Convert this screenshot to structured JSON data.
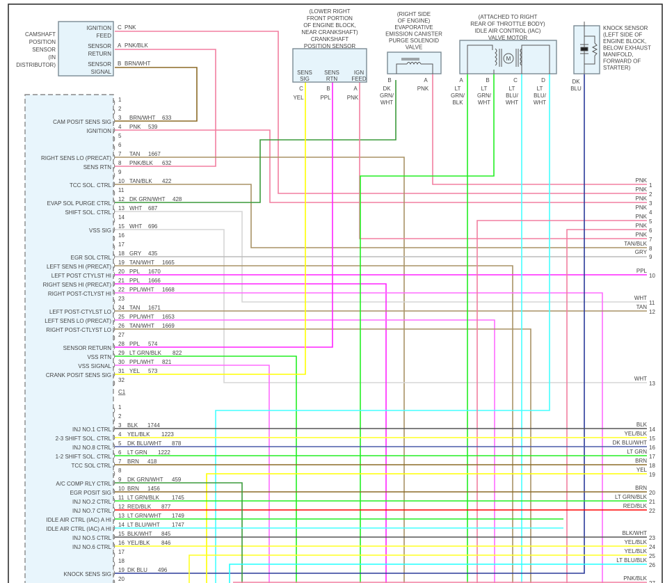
{
  "wire_colors": {
    "PNK": "#f27ea0",
    "PNK/BLK": "#f27ea0",
    "PPL": "#ff22ff",
    "PPL/WHT": "#ff6cff",
    "TAN": "#a89265",
    "TAN/BLK": "#a89265",
    "TAN/WHT": "#a89265",
    "BRN": "#8b6a26",
    "BRN/WHT": "#8b6a26",
    "GRY": "#bcbcbc",
    "WHT": "#d6d6d6",
    "YEL": "#ffff00",
    "YEL/BLK": "#ffff22",
    "LT GRN": "#22ee22",
    "LT GRN/BLK": "#22ee22",
    "LT GRN/WHT": "#22ee22",
    "DK GRN/WHT": "#3a9a3a",
    "LT BLU/WHT": "#44ffff",
    "LT BLU/BLK": "#22ffff",
    "DK BLU": "#2a3a9a",
    "DK BLU/WHT": "#4a5aa8",
    "BLK": "#555555",
    "BLK/WHT": "#555555",
    "RED/BLK": "#ff0000"
  },
  "camshaft_sensor": {
    "name_lines": [
      "CAMSHAFT",
      "POSITION",
      "SENSOR",
      "(IN",
      "DISTRIBUTOR)"
    ],
    "pins": [
      {
        "label_lines": [
          "IGNITION",
          "FEED"
        ],
        "pin": "C",
        "wire": "PNK"
      },
      {
        "label_lines": [
          "SENSOR",
          "RETURN"
        ],
        "pin": "A",
        "wire": "PNK/BLK"
      },
      {
        "label_lines": [
          "SENSOR",
          "SIGNAL"
        ],
        "pin": "B",
        "wire": "BRN/WHT"
      }
    ]
  },
  "crank_sensor": {
    "name_lines": [
      "(LOWER RIGHT",
      "FRONT PORTION",
      "OF ENGINE BLOCK,",
      "NEAR CRANKSHAFT)",
      "CRANKSHAFT",
      "POSITION SENSOR"
    ],
    "pins": [
      {
        "label_lines": [
          "SENS",
          "SIG"
        ],
        "pin": "C",
        "wire": "YEL"
      },
      {
        "label_lines": [
          "SENS",
          "RTN"
        ],
        "pin": "B",
        "wire": "PPL"
      },
      {
        "label_lines": [
          "IGN",
          "FEED"
        ],
        "pin": "A",
        "wire": "PNK"
      }
    ]
  },
  "evap_valve": {
    "name_lines": [
      "(RIGHT SIDE",
      "OF ENGINE)",
      "EVAPORATIVE",
      "EMISSION CANISTER",
      "PURGE SOLENOID",
      "VALVE"
    ],
    "pins": [
      {
        "pin": "B",
        "wire_lines": [
          "DK",
          "GRN/",
          "WHT"
        ]
      },
      {
        "pin": "A",
        "wire_lines": [
          "PNK"
        ]
      }
    ]
  },
  "iac_motor": {
    "name_lines": [
      "(ATTACHED TO RIGHT",
      "REAR OF THROTTLE BODY)",
      "IDLE AIR CONTROL (IAC)",
      "VALVE MOTOR"
    ],
    "motor_symbol": "M",
    "pins": [
      {
        "pin": "A",
        "wire_lines": [
          "LT",
          "GRN/",
          "BLK"
        ]
      },
      {
        "pin": "B",
        "wire_lines": [
          "LT",
          "GRN/",
          "WHT"
        ]
      },
      {
        "pin": "C",
        "wire_lines": [
          "LT",
          "BLU/",
          "WHT"
        ]
      },
      {
        "pin": "D",
        "wire_lines": [
          "LT",
          "BLU/",
          "WHT"
        ]
      }
    ]
  },
  "knock_sensor": {
    "name_lines": [
      "KNOCK SENSOR",
      "(LEFT SIDE OF",
      "ENGINE BLOCK,",
      "BELOW EXHAUST",
      "MANIFOLD,",
      "FORWARD OF",
      "STARTER)"
    ],
    "wire_lines": [
      "DK",
      "BLU"
    ]
  },
  "pcm": {
    "c2_pins": [
      {
        "pin": "1",
        "func": "",
        "wire": "",
        "circuit": ""
      },
      {
        "pin": "2",
        "func": "",
        "wire": "",
        "circuit": ""
      },
      {
        "pin": "3",
        "func": "CAM POSIT SENS SIG",
        "wire": "BRN/WHT",
        "circuit": "633"
      },
      {
        "pin": "4",
        "func": "IGNITION",
        "wire": "PNK",
        "circuit": "539"
      },
      {
        "pin": "5",
        "func": "",
        "wire": "",
        "circuit": ""
      },
      {
        "pin": "6",
        "func": "",
        "wire": "",
        "circuit": ""
      },
      {
        "pin": "7",
        "func": "RIGHT SENS LO (PRECAT)",
        "wire": "TAN",
        "circuit": "1667"
      },
      {
        "pin": "8",
        "func": "SENS RTN",
        "wire": "PNK/BLK",
        "circuit": "632"
      },
      {
        "pin": "9",
        "func": "",
        "wire": "",
        "circuit": ""
      },
      {
        "pin": "10",
        "func": "TCC SOL. CTRL",
        "wire": "TAN/BLK",
        "circuit": "422"
      },
      {
        "pin": "11",
        "func": "",
        "wire": "",
        "circuit": ""
      },
      {
        "pin": "12",
        "func": "EVAP SOL PURGE CTRL",
        "wire": "DK GRN/WHT",
        "circuit": "428"
      },
      {
        "pin": "13",
        "func": "SHIFT SOL. CTRL",
        "wire": "WHT",
        "circuit": "687"
      },
      {
        "pin": "14",
        "func": "",
        "wire": "",
        "circuit": ""
      },
      {
        "pin": "15",
        "func": "VSS SIG",
        "wire": "WHT",
        "circuit": "696"
      },
      {
        "pin": "16",
        "func": "",
        "wire": "",
        "circuit": ""
      },
      {
        "pin": "17",
        "func": "",
        "wire": "",
        "circuit": ""
      },
      {
        "pin": "18",
        "func": "EGR SOL CTRL",
        "wire": "GRY",
        "circuit": "435"
      },
      {
        "pin": "19",
        "func": "LEFT SENS HI (PRECAT)",
        "wire": "TAN/WHT",
        "circuit": "1665"
      },
      {
        "pin": "20",
        "func": "LEFT POST CTYLST HI",
        "wire": "PPL",
        "circuit": "1670"
      },
      {
        "pin": "21",
        "func": "RIGHT SENS HI (PRECAT)",
        "wire": "PPL",
        "circuit": "1666"
      },
      {
        "pin": "22",
        "func": "RIGHT POST-CTLYST HI",
        "wire": "PPL/WHT",
        "circuit": "1668"
      },
      {
        "pin": "23",
        "func": "",
        "wire": "",
        "circuit": ""
      },
      {
        "pin": "24",
        "func": "LEFT POST-CTYLST LO",
        "wire": "TAN",
        "circuit": "1671"
      },
      {
        "pin": "25",
        "func": "LEFT SENS LO (PRECAT)",
        "wire": "PPL/WHT",
        "circuit": "1653"
      },
      {
        "pin": "26",
        "func": "RIGHT POST-CTLYST LO",
        "wire": "TAN/WHT",
        "circuit": "1669"
      },
      {
        "pin": "27",
        "func": "",
        "wire": "",
        "circuit": ""
      },
      {
        "pin": "28",
        "func": "SENSOR RETURN",
        "wire": "PPL",
        "circuit": "574"
      },
      {
        "pin": "29",
        "func": "VSS RTN",
        "wire": "LT GRN/BLK",
        "circuit": "822"
      },
      {
        "pin": "30",
        "func": "VSS SIGNAL",
        "wire": "PPL/WHT",
        "circuit": "821"
      },
      {
        "pin": "31",
        "func": "CRANK POSIT SENS SIG",
        "wire": "YEL",
        "circuit": "573"
      },
      {
        "pin": "32",
        "func": "",
        "wire": "",
        "circuit": ""
      }
    ],
    "c1_label": "C1",
    "c1_pins": [
      {
        "pin": "1",
        "func": "",
        "wire": "",
        "circuit": ""
      },
      {
        "pin": "2",
        "func": "",
        "wire": "",
        "circuit": ""
      },
      {
        "pin": "3",
        "func": "INJ NO.1 CTRL",
        "wire": "BLK",
        "circuit": "1744"
      },
      {
        "pin": "4",
        "func": "2-3 SHIFT SOL. CTRL",
        "wire": "YEL/BLK",
        "circuit": "1223"
      },
      {
        "pin": "5",
        "func": "INJ NO.8 CTRL",
        "wire": "DK BLU/WHT",
        "circuit": "878"
      },
      {
        "pin": "6",
        "func": "1-2 SHIFT SOL. CTRL",
        "wire": "LT GRN",
        "circuit": "1222"
      },
      {
        "pin": "7",
        "func": "TCC SOL CTRL",
        "wire": "BRN",
        "circuit": "418"
      },
      {
        "pin": "8",
        "func": "",
        "wire": "",
        "circuit": ""
      },
      {
        "pin": "9",
        "func": "A/C COMP RLY CTRL",
        "wire": "DK GRN/WHT",
        "circuit": "459"
      },
      {
        "pin": "10",
        "func": "EGR POSIT SIG",
        "wire": "BRN",
        "circuit": "1456"
      },
      {
        "pin": "11",
        "func": "INJ NO.2 CTRL",
        "wire": "LT GRN/BLK",
        "circuit": "1745"
      },
      {
        "pin": "12",
        "func": "INJ NO.7 CTRL",
        "wire": "RED/BLK",
        "circuit": "877"
      },
      {
        "pin": "13",
        "func": "IDLE AIR CTRL (IAC) A HI",
        "wire": "LT GRN/WHT",
        "circuit": "1749"
      },
      {
        "pin": "14",
        "func": "IDLE AIR CTRL (IAC) A HI",
        "wire": "LT BLU/WHT",
        "circuit": "1747"
      },
      {
        "pin": "15",
        "func": "INJ NO.5 CTRL",
        "wire": "BLK/WHT",
        "circuit": "845"
      },
      {
        "pin": "16",
        "func": "INJ NO.6 CTRL",
        "wire": "YEL/BLK",
        "circuit": "846"
      },
      {
        "pin": "17",
        "func": "",
        "wire": "",
        "circuit": ""
      },
      {
        "pin": "18",
        "func": "",
        "wire": "",
        "circuit": ""
      },
      {
        "pin": "19",
        "func": "KNOCK SENS SIG",
        "wire": "DK BLU",
        "circuit": "496"
      },
      {
        "pin": "20",
        "func": "",
        "wire": "",
        "circuit": ""
      }
    ]
  },
  "right_connector": [
    {
      "pin": "1",
      "wire": "PNK"
    },
    {
      "pin": "2",
      "wire": "PNK"
    },
    {
      "pin": "3",
      "wire": "PNK"
    },
    {
      "pin": "4",
      "wire": "PNK"
    },
    {
      "pin": "5",
      "wire": "PNK"
    },
    {
      "pin": "6",
      "wire": "PNK"
    },
    {
      "pin": "7",
      "wire": "PNK"
    },
    {
      "pin": "8",
      "wire": "TAN/BLK"
    },
    {
      "pin": "9",
      "wire": "GRY"
    },
    {
      "pin": "10",
      "wire": "PPL"
    },
    {
      "pin": "11",
      "wire": "WHT"
    },
    {
      "pin": "12",
      "wire": "TAN"
    },
    {
      "pin": "13",
      "wire": "WHT"
    },
    {
      "pin": "14",
      "wire": "BLK"
    },
    {
      "pin": "15",
      "wire": "YEL/BLK"
    },
    {
      "pin": "16",
      "wire": "DK BLU/WHT"
    },
    {
      "pin": "17",
      "wire": "LT GRN"
    },
    {
      "pin": "18",
      "wire": "BRN"
    },
    {
      "pin": "19",
      "wire": "YEL"
    },
    {
      "pin": "20",
      "wire": "BRN"
    },
    {
      "pin": "21",
      "wire": "LT GRN/BLK"
    },
    {
      "pin": "22",
      "wire": "RED/BLK"
    },
    {
      "pin": "23",
      "wire": "BLK/WHT"
    },
    {
      "pin": "24",
      "wire": "YEL/BLK"
    },
    {
      "pin": "25",
      "wire": "YEL/BLK"
    },
    {
      "pin": "26",
      "wire": "LT BLU/BLK"
    },
    {
      "pin": "27",
      "wire": "PNK/BLK"
    }
  ]
}
